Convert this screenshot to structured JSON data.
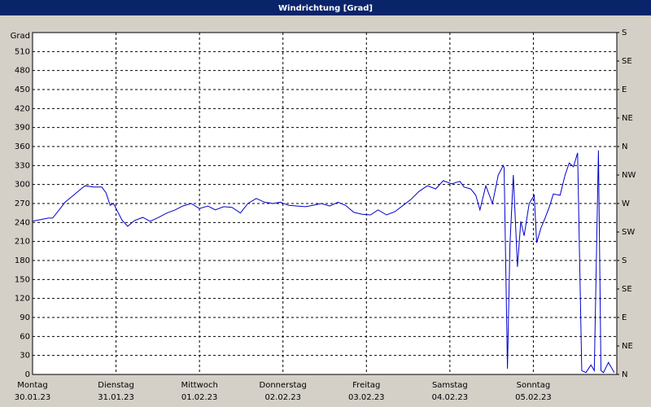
{
  "chart_data": {
    "type": "line",
    "title": "Windrichtung [Grad]",
    "y_label": "Grad",
    "xlim": [
      0,
      7
    ],
    "ylim": [
      0,
      540
    ],
    "y2lim": [
      0,
      540
    ],
    "yticks": [
      0,
      30,
      60,
      90,
      120,
      150,
      180,
      210,
      240,
      270,
      300,
      330,
      360,
      390,
      420,
      450,
      480,
      510
    ],
    "y2ticks": [
      {
        "value": 0,
        "label": "N"
      },
      {
        "value": 45,
        "label": "NE"
      },
      {
        "value": 90,
        "label": "E"
      },
      {
        "value": 135,
        "label": "SE"
      },
      {
        "value": 180,
        "label": "S"
      },
      {
        "value": 225,
        "label": "SW"
      },
      {
        "value": 270,
        "label": "W"
      },
      {
        "value": 315,
        "label": "NW"
      },
      {
        "value": 360,
        "label": "N"
      },
      {
        "value": 405,
        "label": "NE"
      },
      {
        "value": 450,
        "label": "E"
      },
      {
        "value": 495,
        "label": "SE"
      },
      {
        "value": 540,
        "label": "S"
      }
    ],
    "xticks": [
      {
        "value": 0,
        "label": "Montag",
        "date": "30.01.23"
      },
      {
        "value": 1,
        "label": "Dienstag",
        "date": "31.01.23"
      },
      {
        "value": 2,
        "label": "Mittwoch",
        "date": "01.02.23"
      },
      {
        "value": 3,
        "label": "Donnerstag",
        "date": "02.02.23"
      },
      {
        "value": 4,
        "label": "Freitag",
        "date": "03.02.23"
      },
      {
        "value": 5,
        "label": "Samstag",
        "date": "04.02.23"
      },
      {
        "value": 6,
        "label": "Sonntag",
        "date": "05.02.23"
      }
    ],
    "grid": true,
    "color": "#0000cc",
    "x": [
      0,
      0.19,
      0.24,
      0.29,
      0.39,
      0.49,
      0.58,
      0.63,
      0.73,
      0.83,
      0.88,
      0.93,
      0.97,
      1.07,
      1.14,
      1.22,
      1.32,
      1.41,
      1.51,
      1.61,
      1.71,
      1.8,
      1.9,
      2.0,
      2.1,
      2.19,
      2.29,
      2.39,
      2.49,
      2.58,
      2.68,
      2.78,
      2.88,
      2.97,
      3.07,
      3.17,
      3.27,
      3.36,
      3.46,
      3.56,
      3.66,
      3.75,
      3.85,
      3.95,
      4.05,
      4.14,
      4.24,
      4.34,
      4.44,
      4.53,
      4.63,
      4.73,
      4.83,
      4.92,
      5.02,
      5.12,
      5.17,
      5.25,
      5.31,
      5.36,
      5.43,
      5.51,
      5.58,
      5.64,
      5.65,
      5.69,
      5.72,
      5.76,
      5.81,
      5.85,
      5.89,
      5.95,
      6.01,
      6.04,
      6.09,
      6.14,
      6.19,
      6.24,
      6.32,
      6.38,
      6.43,
      6.48,
      6.53,
      6.58,
      6.63,
      6.69,
      6.73,
      6.78,
      6.81,
      6.84,
      6.9,
      6.97
    ],
    "values": [
      242,
      247,
      247,
      255,
      272,
      283,
      293,
      298,
      296,
      296,
      287,
      267,
      270,
      244,
      234,
      243,
      248,
      242,
      248,
      255,
      260,
      266,
      270,
      262,
      266,
      260,
      265,
      264,
      255,
      270,
      278,
      272,
      270,
      272,
      267,
      266,
      265,
      267,
      270,
      266,
      272,
      267,
      256,
      253,
      252,
      260,
      252,
      257,
      267,
      276,
      289,
      298,
      293,
      306,
      301,
      305,
      296,
      293,
      283,
      260,
      298,
      270,
      315,
      330,
      326,
      9,
      206,
      315,
      170,
      242,
      219,
      270,
      283,
      208,
      231,
      247,
      264,
      285,
      283,
      315,
      334,
      328,
      350,
      6,
      3,
      15,
      6,
      354,
      6,
      3,
      19,
      3
    ]
  }
}
